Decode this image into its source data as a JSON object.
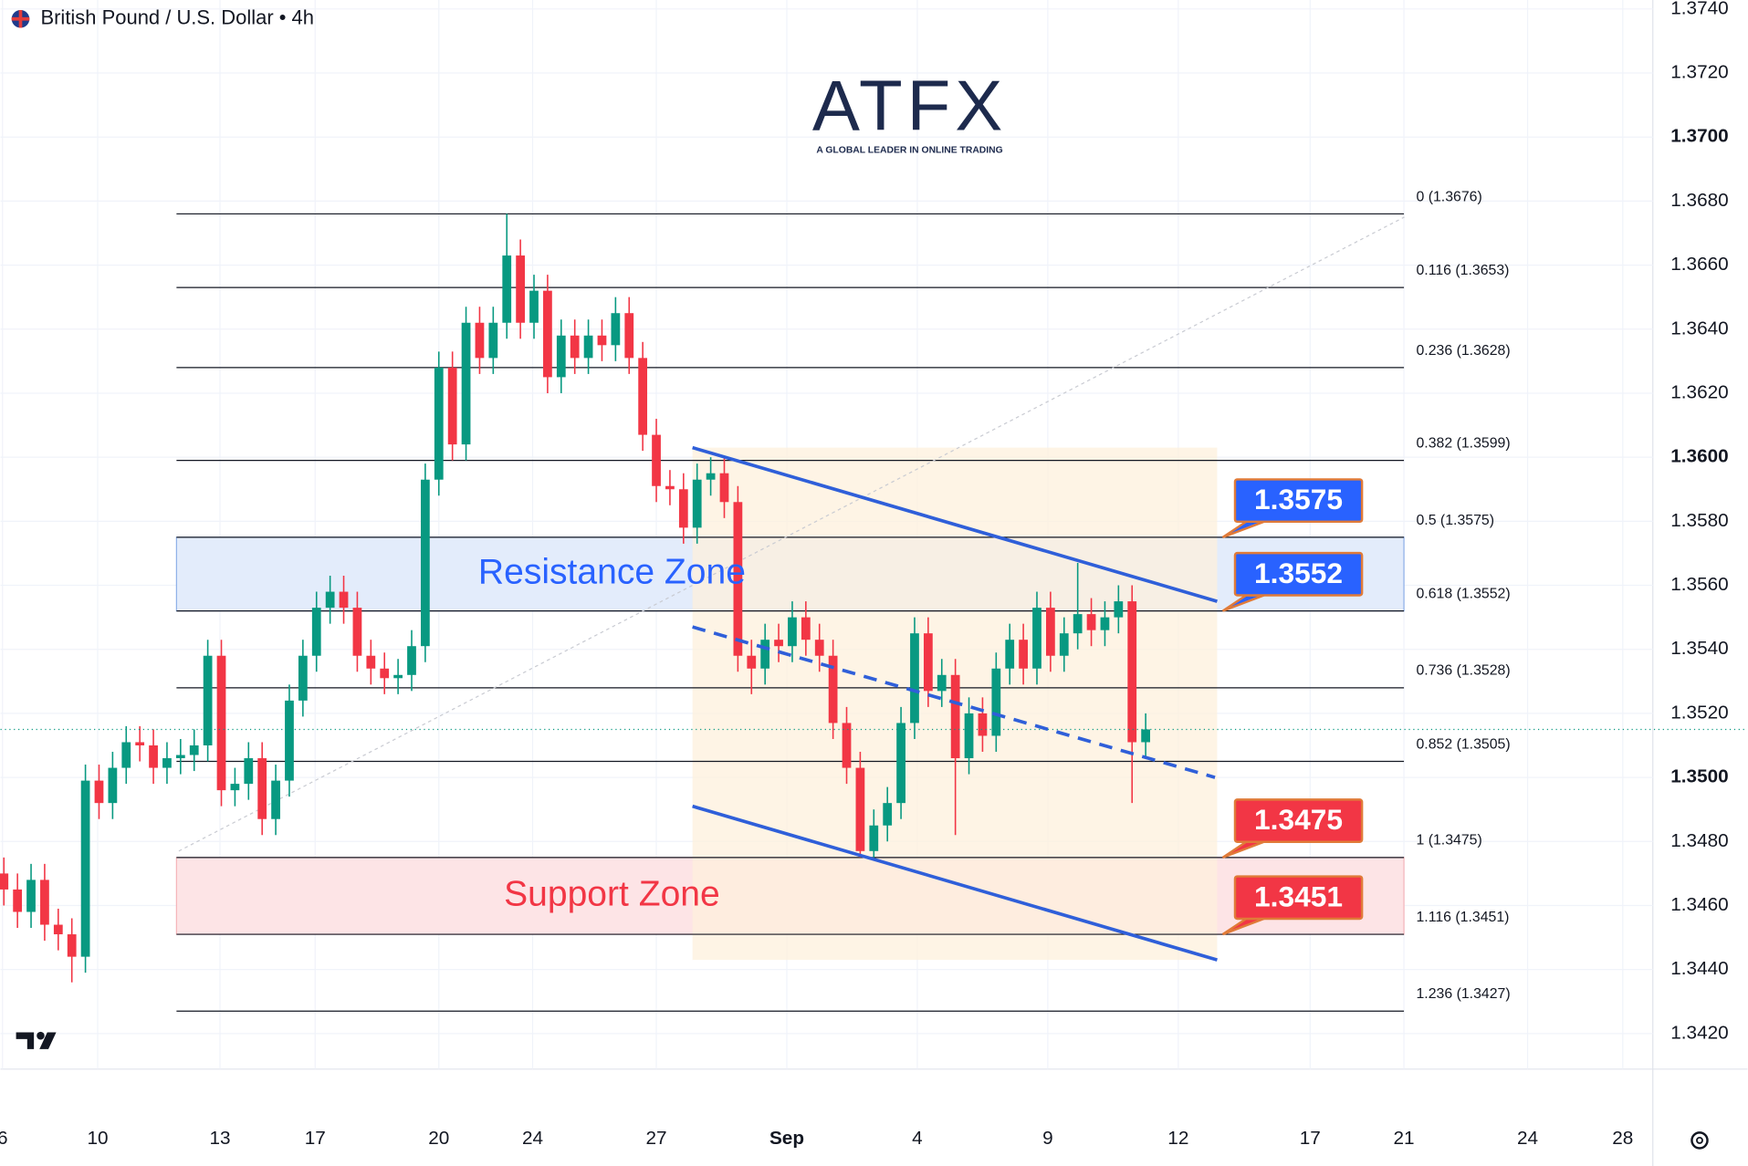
{
  "chart_data": {
    "type": "candlestick",
    "title": "British Pound / U.S. Dollar • 4h",
    "logo": {
      "name": "ATFX",
      "tagline": "A GLOBAL LEADER IN ONLINE TRADING"
    },
    "up_color": "#089981",
    "down_color": "#f23645",
    "grid": true,
    "xlim": [
      -0.25,
      121.31
    ],
    "ylim": [
      1.34089,
      1.37428
    ],
    "xticks": [
      {
        "value": -0.1,
        "label": "6"
      },
      {
        "value": 6.9,
        "label": "10"
      },
      {
        "value": 15.9,
        "label": "13"
      },
      {
        "value": 22.9,
        "label": "17"
      },
      {
        "value": 32,
        "label": "20"
      },
      {
        "value": 38.9,
        "label": "24"
      },
      {
        "value": 48,
        "label": "27"
      },
      {
        "value": 57.6,
        "label": "Sep"
      },
      {
        "value": 67.2,
        "label": "4"
      },
      {
        "value": 76.8,
        "label": "9"
      },
      {
        "value": 86.4,
        "label": "12"
      },
      {
        "value": 96.1,
        "label": "17"
      },
      {
        "value": 103,
        "label": "21"
      },
      {
        "value": 112.1,
        "label": "24"
      },
      {
        "value": 119.1,
        "label": "28"
      }
    ],
    "yticks": [
      {
        "value": 1.342,
        "label": "1.3420"
      },
      {
        "value": 1.344,
        "label": "1.3440"
      },
      {
        "value": 1.346,
        "label": "1.3460"
      },
      {
        "value": 1.348,
        "label": "1.3480"
      },
      {
        "value": 1.35,
        "label": "1.3500"
      },
      {
        "value": 1.352,
        "label": "1.3520"
      },
      {
        "value": 1.354,
        "label": "1.3540"
      },
      {
        "value": 1.356,
        "label": "1.3560"
      },
      {
        "value": 1.358,
        "label": "1.3580"
      },
      {
        "value": 1.36,
        "label": "1.3600"
      },
      {
        "value": 1.362,
        "label": "1.3620"
      },
      {
        "value": 1.364,
        "label": "1.3640"
      },
      {
        "value": 1.366,
        "label": "1.3660"
      },
      {
        "value": 1.368,
        "label": "1.3680"
      },
      {
        "value": 1.37,
        "label": "1.3700"
      },
      {
        "value": 1.372,
        "label": "1.3720"
      },
      {
        "value": 1.374,
        "label": "1.3740"
      }
    ],
    "candles": {
      "x": [
        0,
        1,
        2,
        3,
        4,
        5,
        6,
        7,
        8,
        9,
        10,
        11,
        12,
        13,
        14,
        15,
        16,
        17,
        18,
        19,
        20,
        21,
        22,
        23,
        24,
        25,
        26,
        27,
        28,
        29,
        30,
        31,
        32,
        33,
        34,
        35,
        36,
        37,
        38,
        39,
        40,
        41,
        42,
        43,
        44,
        45,
        46,
        47,
        48,
        49,
        50,
        51,
        52,
        53,
        54,
        55,
        56,
        57,
        58,
        59,
        60,
        61,
        62,
        63,
        64,
        65,
        66,
        67,
        68,
        69,
        70,
        71,
        72,
        73,
        74,
        75,
        76,
        77,
        78,
        79,
        80,
        81,
        82,
        83,
        84
      ],
      "open": [
        1.347,
        1.3465,
        1.3458,
        1.3468,
        1.3454,
        1.3451,
        1.3444,
        1.3499,
        1.3492,
        1.3503,
        1.3511,
        1.351,
        1.3503,
        1.3506,
        1.3507,
        1.351,
        1.3538,
        1.3496,
        1.3498,
        1.3506,
        1.3487,
        1.3499,
        1.3524,
        1.3538,
        1.3553,
        1.3558,
        1.3553,
        1.3538,
        1.3534,
        1.3531,
        1.3532,
        1.3541,
        1.3593,
        1.3628,
        1.3604,
        1.3642,
        1.3631,
        1.3642,
        1.3663,
        1.3642,
        1.3652,
        1.3625,
        1.3638,
        1.3631,
        1.3638,
        1.3635,
        1.3645,
        1.3631,
        1.3607,
        1.3591,
        1.359,
        1.3578,
        1.3593,
        1.3595,
        1.3586,
        1.3538,
        1.3534,
        1.3543,
        1.3541,
        1.355,
        1.3543,
        1.3538,
        1.3517,
        1.3503,
        1.3477,
        1.3485,
        1.3492,
        1.3517,
        1.3545,
        1.3527,
        1.3532,
        1.3506,
        1.352,
        1.3513,
        1.3534,
        1.3543,
        1.3534,
        1.3553,
        1.3538,
        1.3545,
        1.3551,
        1.3546,
        1.355,
        1.3555,
        1.3511
      ],
      "high": [
        1.3475,
        1.347,
        1.3473,
        1.3473,
        1.3459,
        1.3456,
        1.3504,
        1.3504,
        1.3508,
        1.3516,
        1.3516,
        1.3515,
        1.3511,
        1.3512,
        1.3515,
        1.3543,
        1.3543,
        1.3503,
        1.3511,
        1.3511,
        1.3504,
        1.3529,
        1.3543,
        1.3558,
        1.3563,
        1.3563,
        1.3558,
        1.3543,
        1.3539,
        1.3537,
        1.3546,
        1.3598,
        1.3633,
        1.3633,
        1.3647,
        1.3647,
        1.3647,
        1.3676,
        1.3668,
        1.3657,
        1.3657,
        1.3643,
        1.3643,
        1.3643,
        1.3643,
        1.365,
        1.365,
        1.3636,
        1.3612,
        1.3596,
        1.3595,
        1.3598,
        1.36,
        1.36,
        1.3591,
        1.3543,
        1.3548,
        1.3548,
        1.3555,
        1.3555,
        1.3548,
        1.3543,
        1.3522,
        1.3508,
        1.349,
        1.3497,
        1.3522,
        1.355,
        1.355,
        1.3537,
        1.3537,
        1.3525,
        1.3525,
        1.3539,
        1.3548,
        1.3548,
        1.3558,
        1.3558,
        1.355,
        1.3567,
        1.3556,
        1.3555,
        1.356,
        1.356,
        1.352
      ],
      "low": [
        1.346,
        1.3453,
        1.3453,
        1.3449,
        1.3446,
        1.3436,
        1.3439,
        1.3487,
        1.3487,
        1.3498,
        1.3505,
        1.3498,
        1.3498,
        1.3501,
        1.3502,
        1.3505,
        1.3491,
        1.3491,
        1.3493,
        1.3482,
        1.3482,
        1.3494,
        1.3519,
        1.3533,
        1.3548,
        1.3548,
        1.3533,
        1.3529,
        1.3526,
        1.3526,
        1.3527,
        1.3536,
        1.3588,
        1.3599,
        1.3599,
        1.3626,
        1.3626,
        1.3637,
        1.3637,
        1.3637,
        1.362,
        1.362,
        1.3626,
        1.3626,
        1.363,
        1.363,
        1.3626,
        1.3602,
        1.3586,
        1.3585,
        1.3573,
        1.3573,
        1.3588,
        1.3581,
        1.3533,
        1.3526,
        1.3529,
        1.3536,
        1.3536,
        1.3538,
        1.3533,
        1.3512,
        1.3498,
        1.3475,
        1.3475,
        1.348,
        1.3487,
        1.3512,
        1.3522,
        1.3522,
        1.3482,
        1.3501,
        1.3508,
        1.3508,
        1.3529,
        1.3529,
        1.3529,
        1.3533,
        1.3533,
        1.354,
        1.3541,
        1.3541,
        1.3545,
        1.3492,
        1.3506
      ],
      "close": [
        1.3465,
        1.3458,
        1.3468,
        1.3454,
        1.3451,
        1.3444,
        1.3499,
        1.3492,
        1.3503,
        1.3511,
        1.351,
        1.3503,
        1.3506,
        1.3507,
        1.351,
        1.3538,
        1.3496,
        1.3498,
        1.3506,
        1.3487,
        1.3499,
        1.3524,
        1.3538,
        1.3553,
        1.3558,
        1.3553,
        1.3538,
        1.3534,
        1.3531,
        1.3532,
        1.3541,
        1.3593,
        1.3628,
        1.3604,
        1.3642,
        1.3631,
        1.3642,
        1.3663,
        1.3642,
        1.3652,
        1.3625,
        1.3638,
        1.3631,
        1.3638,
        1.3635,
        1.3645,
        1.3631,
        1.3607,
        1.3591,
        1.359,
        1.3578,
        1.3593,
        1.3595,
        1.3586,
        1.3538,
        1.3534,
        1.3543,
        1.3541,
        1.355,
        1.3543,
        1.3538,
        1.3517,
        1.3503,
        1.3477,
        1.3485,
        1.3492,
        1.3517,
        1.3545,
        1.3527,
        1.3532,
        1.3506,
        1.352,
        1.3513,
        1.3534,
        1.3543,
        1.3534,
        1.3553,
        1.3538,
        1.3545,
        1.3551,
        1.3546,
        1.355,
        1.3555,
        1.3511,
        1.3515
      ]
    },
    "fib_range": [
      12.7,
      103
    ],
    "fib_levels": [
      {
        "value": 1.3676,
        "label": "0 (1.3676)"
      },
      {
        "value": 1.3653,
        "label": "0.116 (1.3653)"
      },
      {
        "value": 1.3628,
        "label": "0.236 (1.3628)"
      },
      {
        "value": 1.3599,
        "label": "0.382 (1.3599)"
      },
      {
        "value": 1.3575,
        "label": "0.5 (1.3575)"
      },
      {
        "value": 1.3552,
        "label": "0.618 (1.3552)"
      },
      {
        "value": 1.3528,
        "label": "0.736 (1.3528)"
      },
      {
        "value": 1.3505,
        "label": "0.852 (1.3505)"
      },
      {
        "value": 1.3475,
        "label": "1 (1.3475)"
      },
      {
        "value": 1.3451,
        "label": "1.116 (1.3451)"
      },
      {
        "value": 1.3427,
        "label": "1.236 (1.3427)"
      }
    ],
    "zones": [
      {
        "label": "Resistance Zone",
        "low": 1.3552,
        "high": 1.3575,
        "color": "#2962ff",
        "fill": "#e3ecfb",
        "border": "#8fb0e8"
      },
      {
        "label": "Support Zone",
        "low": 1.3451,
        "high": 1.3475,
        "color": "#f23645",
        "fill": "#fde4e6",
        "border": "#f5b5ba"
      }
    ],
    "channel": {
      "fill": "#fdf0dc",
      "color": "#2f5fd9",
      "upper": {
        "x": [
          50.66,
          89.26
        ],
        "y": [
          1.3603,
          1.3555
        ]
      },
      "middle": {
        "x": [
          50.66,
          89.1
        ],
        "y": [
          1.3547,
          1.35
        ]
      },
      "lower": {
        "x": [
          50.66,
          89.26
        ],
        "y": [
          1.3491,
          1.3443
        ]
      }
    },
    "trendline": {
      "x": [
        12.87,
        103.03
      ],
      "y": [
        1.3477,
        1.3675
      ]
    },
    "callouts": [
      {
        "value": 1.3575,
        "color": "#2962ff"
      },
      {
        "value": 1.3552,
        "color": "#2962ff"
      },
      {
        "value": 1.3475,
        "color": "#f23645"
      },
      {
        "value": 1.3451,
        "color": "#f23645"
      }
    ]
  }
}
